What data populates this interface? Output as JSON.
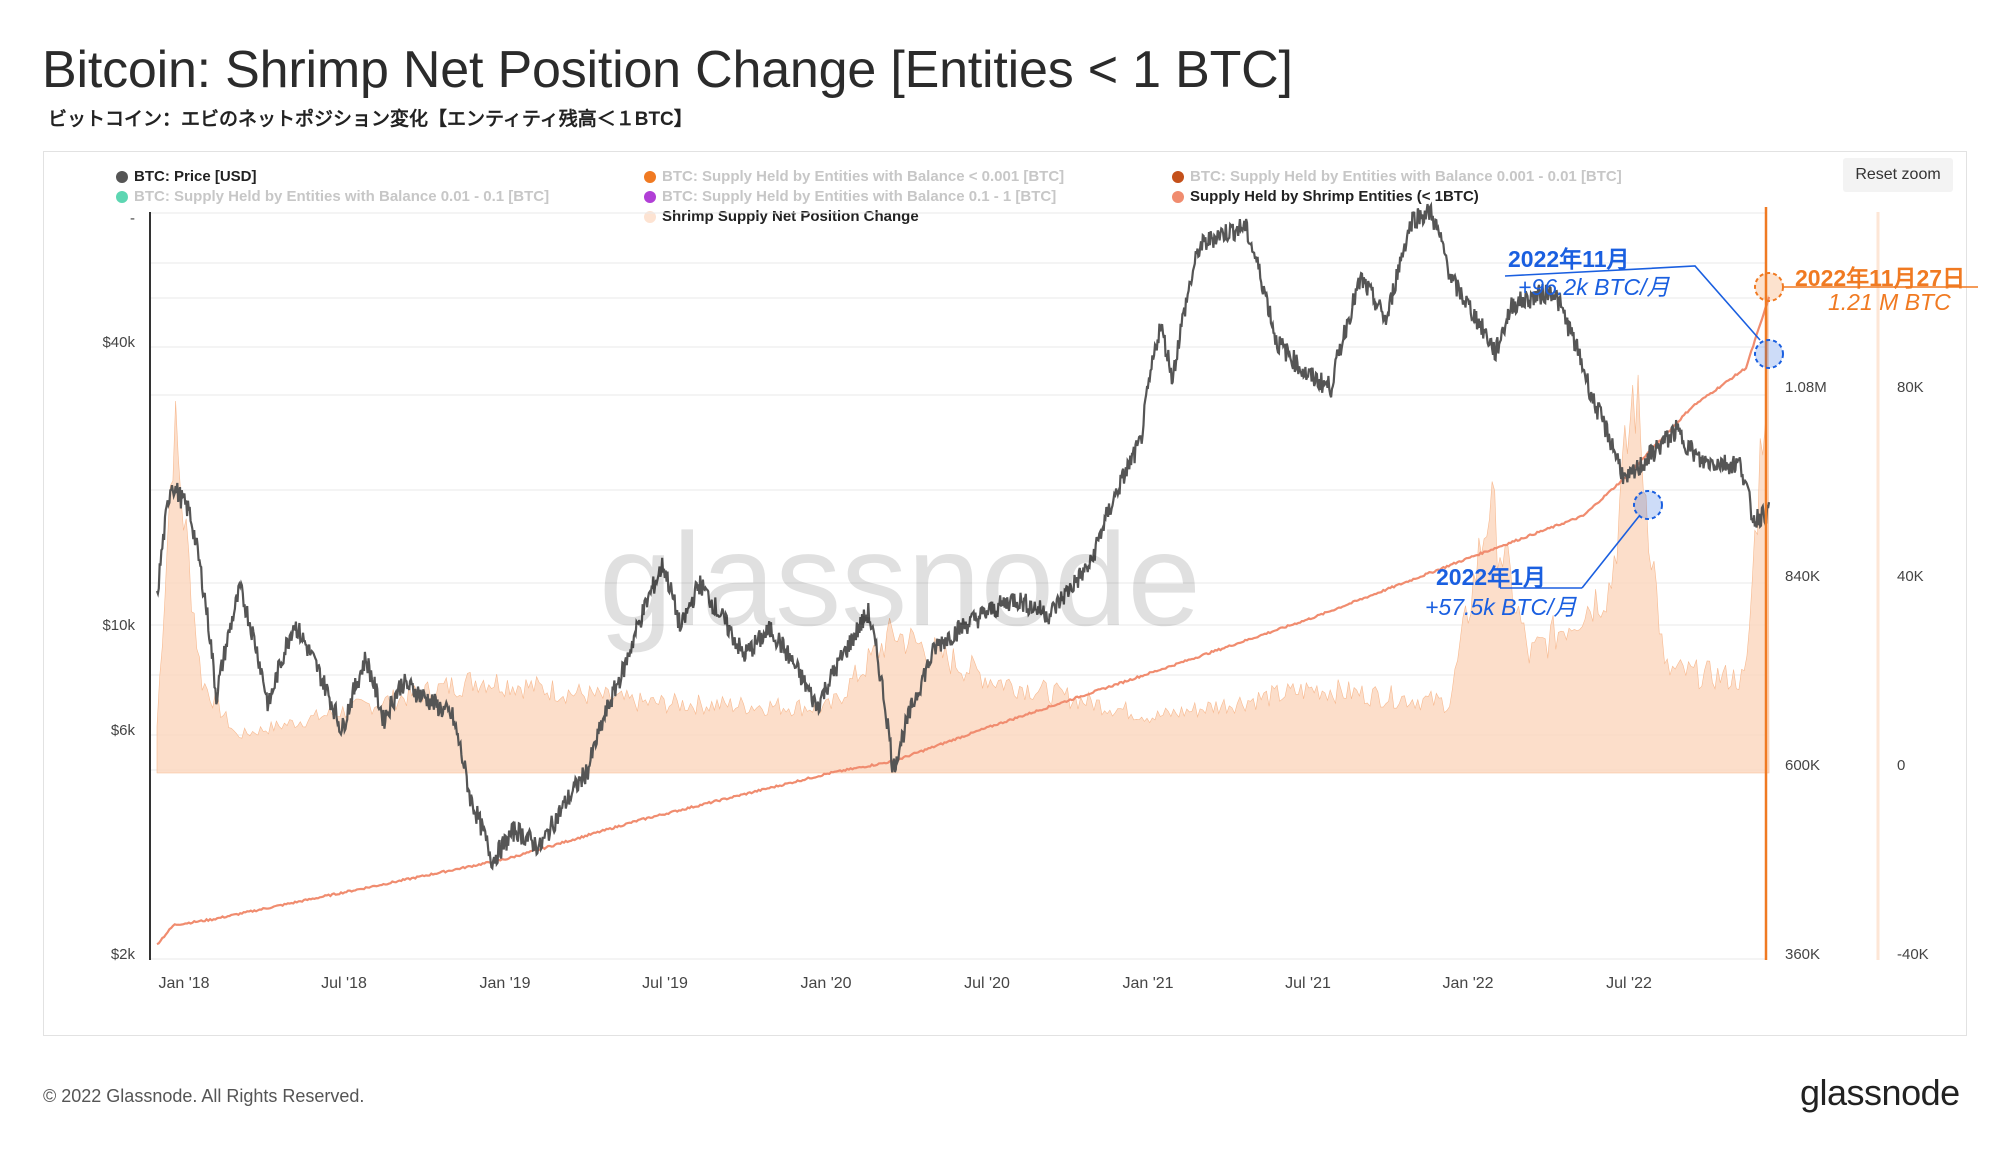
{
  "title": "Bitcoin: Shrimp Net Position Change [Entities < 1 BTC]",
  "subtitle": "ビットコイン：エビのネットポジション変化【エンティティ残高＜１BTC】",
  "reset_zoom": "Reset zoom",
  "footer": {
    "copyright": "© 2022 Glassnode. All Rights Reserved.",
    "logo": "glassnode"
  },
  "watermark": "glassnode",
  "colors": {
    "price": "#555555",
    "supply": "#f08c6f",
    "netpos": "#fbd3b8",
    "accent": "#f07a22",
    "annotation": "#1a5fe0"
  },
  "legend": [
    {
      "label": "BTC: Price [USD]",
      "color": "#555555",
      "active": true
    },
    {
      "label": "BTC: Supply Held by Entities with Balance < 0.001 [BTC]",
      "color": "#f07a22",
      "active": false
    },
    {
      "label": "BTC: Supply Held by Entities with Balance 0.001 - 0.01 [BTC]",
      "color": "#c4501a",
      "active": false
    },
    {
      "label": "BTC: Supply Held by Entities with Balance 0.01 - 0.1 [BTC]",
      "color": "#5dd6b2",
      "active": false
    },
    {
      "label": "BTC: Supply Held by Entities with Balance 0.1 - 1 [BTC]",
      "color": "#b13fd6",
      "active": false
    },
    {
      "label": "Supply Held by Shrimp Entities (< 1BTC)",
      "color": "#f08c6f",
      "active": true
    },
    {
      "label": "Shrimp Supply Net Position Change",
      "color": "#fde3d2",
      "active": true
    }
  ],
  "annotations": {
    "nov_title": "2022年11月",
    "nov_value": "+96.2k BTC/月",
    "jan_title": "2022年1月",
    "jan_value": "+57.5k BTC/月",
    "date_title": "2022年11月27日",
    "date_value": "1.21 M BTC"
  },
  "chart_data": {
    "type": "line",
    "x_ticks": [
      "Jan '18",
      "Jul '18",
      "Jan '19",
      "Jul '19",
      "Jan '20",
      "Jul '20",
      "Jan '21",
      "Jul '21",
      "Jan '22",
      "Jul '22"
    ],
    "axes": {
      "price": {
        "scale": "log",
        "ticks": [
          "$2k",
          "$6k",
          "$10k",
          "$40k"
        ],
        "top_tick": "-",
        "range": [
          2000,
          68000
        ]
      },
      "supply": {
        "ticks": [
          "360K",
          "600K",
          "840K",
          "1.08M"
        ],
        "range": [
          360000,
          1320000
        ]
      },
      "net_position": {
        "ticks": [
          "-40K",
          "0",
          "40K",
          "80K"
        ],
        "range": [
          -40000,
          120000
        ]
      }
    },
    "series": [
      {
        "name": "BTC: Price [USD]",
        "axis": "price",
        "points": [
          [
            "2017-12-01",
            11000
          ],
          [
            "2017-12-17",
            19000
          ],
          [
            "2018-01-07",
            16500
          ],
          [
            "2018-02-06",
            6900
          ],
          [
            "2018-03-05",
            11500
          ],
          [
            "2018-04-06",
            6600
          ],
          [
            "2018-05-05",
            9800
          ],
          [
            "2018-06-28",
            5900
          ],
          [
            "2018-07-25",
            8300
          ],
          [
            "2018-08-14",
            6200
          ],
          [
            "2018-09-04",
            7400
          ],
          [
            "2018-10-31",
            6300
          ],
          [
            "2018-11-20",
            4300
          ],
          [
            "2018-12-15",
            3200
          ],
          [
            "2019-01-10",
            3700
          ],
          [
            "2019-02-07",
            3400
          ],
          [
            "2019-04-02",
            4900
          ],
          [
            "2019-05-14",
            8000
          ],
          [
            "2019-06-26",
            12900
          ],
          [
            "2019-07-16",
            9500
          ],
          [
            "2019-08-06",
            11800
          ],
          [
            "2019-09-25",
            8400
          ],
          [
            "2019-10-26",
            9500
          ],
          [
            "2019-12-17",
            6600
          ],
          [
            "2020-01-20",
            8700
          ],
          [
            "2020-02-13",
            10300
          ],
          [
            "2020-03-12",
            4900
          ],
          [
            "2020-04-30",
            8800
          ],
          [
            "2020-06-01",
            9700
          ],
          [
            "2020-07-27",
            11000
          ],
          [
            "2020-09-05",
            10200
          ],
          [
            "2020-10-21",
            12900
          ],
          [
            "2020-12-17",
            23000
          ],
          [
            "2021-01-08",
            40000
          ],
          [
            "2021-01-22",
            31000
          ],
          [
            "2021-02-21",
            57500
          ],
          [
            "2021-03-13",
            61000
          ],
          [
            "2021-04-14",
            63500
          ],
          [
            "2021-05-19",
            37000
          ],
          [
            "2021-06-22",
            31600
          ],
          [
            "2021-07-20",
            29800
          ],
          [
            "2021-08-23",
            49500
          ],
          [
            "2021-09-21",
            40600
          ],
          [
            "2021-10-20",
            66000
          ],
          [
            "2021-11-10",
            68000
          ],
          [
            "2021-12-04",
            49000
          ],
          [
            "2022-01-22",
            35000
          ],
          [
            "2022-02-10",
            44000
          ],
          [
            "2022-03-28",
            47000
          ],
          [
            "2022-05-12",
            28000
          ],
          [
            "2022-06-18",
            19000
          ],
          [
            "2022-08-14",
            24300
          ],
          [
            "2022-09-10",
            21000
          ],
          [
            "2022-10-26",
            20700
          ],
          [
            "2022-11-09",
            16000
          ],
          [
            "2022-11-27",
            16500
          ]
        ]
      },
      {
        "name": "Supply Held by Shrimp Entities (< 1BTC)",
        "axis": "supply",
        "points": [
          [
            "2017-12-01",
            380000
          ],
          [
            "2017-12-20",
            405000
          ],
          [
            "2018-02-01",
            412000
          ],
          [
            "2018-06-01",
            440000
          ],
          [
            "2019-01-01",
            490000
          ],
          [
            "2019-06-01",
            540000
          ],
          [
            "2020-01-01",
            600000
          ],
          [
            "2020-03-12",
            615000
          ],
          [
            "2020-07-01",
            660000
          ],
          [
            "2021-01-01",
            730000
          ],
          [
            "2021-07-01",
            800000
          ],
          [
            "2022-01-01",
            880000
          ],
          [
            "2022-05-01",
            930000
          ],
          [
            "2022-06-18",
            980000
          ],
          [
            "2022-09-01",
            1070000
          ],
          [
            "2022-11-01",
            1120000
          ],
          [
            "2022-11-27",
            1210000
          ]
        ]
      },
      {
        "name": "Shrimp Supply Net Position Change",
        "axis": "net_position",
        "points": [
          [
            "2017-12-01",
            10000
          ],
          [
            "2017-12-20",
            75000
          ],
          [
            "2018-01-20",
            20000
          ],
          [
            "2018-03-01",
            8000
          ],
          [
            "2018-06-01",
            12000
          ],
          [
            "2018-12-01",
            20000
          ],
          [
            "2019-06-01",
            15000
          ],
          [
            "2020-01-01",
            14000
          ],
          [
            "2020-03-12",
            30000
          ],
          [
            "2020-07-01",
            20000
          ],
          [
            "2021-01-01",
            12000
          ],
          [
            "2021-07-01",
            18000
          ],
          [
            "2021-12-01",
            15000
          ],
          [
            "2022-01-15",
            57500
          ],
          [
            "2022-03-01",
            25000
          ],
          [
            "2022-06-01",
            40000
          ],
          [
            "2022-06-28",
            83000
          ],
          [
            "2022-08-01",
            22000
          ],
          [
            "2022-11-01",
            20000
          ],
          [
            "2022-11-27",
            96200
          ]
        ]
      }
    ]
  }
}
